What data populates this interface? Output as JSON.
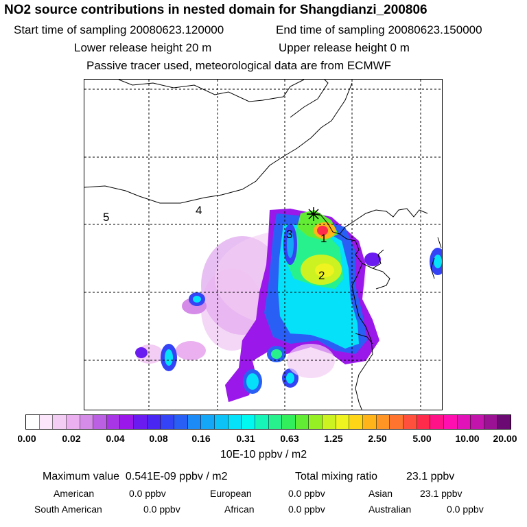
{
  "header": {
    "title": "NO2 source contributions in nested domain for Shangdianzi_200806",
    "start_time": "Start time of sampling 20080623.120000",
    "end_time": "End time of sampling 20080623.150000",
    "lower_release": "Lower release height   20 m",
    "upper_release": "Upper release height    0 m",
    "tracer_note": "Passive tracer used, meteorological data are from ECMWF"
  },
  "map": {
    "receptor_icon": "star-marker-icon",
    "region_labels": [
      "1",
      "2",
      "3",
      "4",
      "5"
    ]
  },
  "colorbar": {
    "ticks": [
      "0.00",
      "0.02",
      "0.04",
      "0.08",
      "0.16",
      "0.31",
      "0.63",
      "1.25",
      "2.50",
      "5.00",
      "10.00",
      "20.00"
    ],
    "colors": [
      "#ffffff",
      "#fbe6fb",
      "#f4cdf4",
      "#eab0ef",
      "#d58be8",
      "#bb5fe3",
      "#a936e6",
      "#9a18e9",
      "#6a1bf0",
      "#4a26f2",
      "#3343f5",
      "#2a5ff5",
      "#1d8bf6",
      "#14a6f7",
      "#0cc2f7",
      "#05e1f8",
      "#00f8f0",
      "#18f5b8",
      "#27f18c",
      "#33ee5c",
      "#62ed34",
      "#96ef23",
      "#cdf222",
      "#eff31f",
      "#ffd518",
      "#ffb41a",
      "#ff9524",
      "#ff7530",
      "#ff4f3d",
      "#ff2b4b",
      "#ff1288",
      "#ff0fb0",
      "#e012b8",
      "#c215ab",
      "#9b1295",
      "#6b0a72"
    ],
    "units": "10E-10 ppbv / m2"
  },
  "stats": {
    "max_label": "Maximum value",
    "max_value": "0.541E-09 ppbv / m2",
    "total_label": "Total mixing ratio",
    "total_value": "23.1 ppbv",
    "regions": [
      {
        "name": "American",
        "value": "0.0 ppbv"
      },
      {
        "name": "European",
        "value": "0.0 ppbv"
      },
      {
        "name": "Asian",
        "value": "23.1 ppbv"
      },
      {
        "name": "South American",
        "value": "0.0 ppbv"
      },
      {
        "name": "African",
        "value": "0.0 ppbv"
      },
      {
        "name": "Australian",
        "value": "0.0 ppbv"
      }
    ]
  }
}
